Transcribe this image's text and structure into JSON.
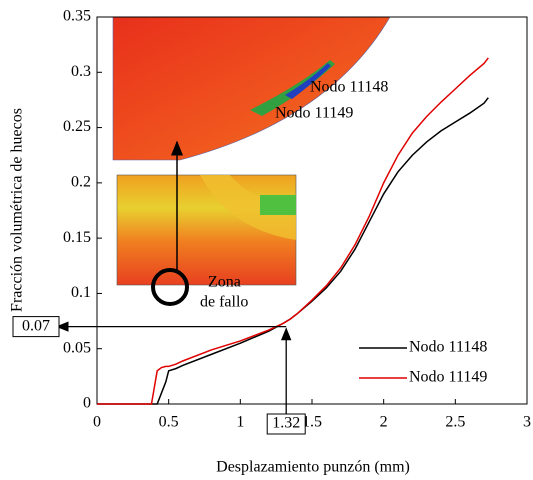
{
  "chart_data": {
    "type": "line",
    "xlabel": "Desplazamiento punzón (mm)",
    "ylabel": "Fracción volumétrica de huecos",
    "x": [
      0,
      0.38,
      0.42,
      0.45,
      0.48,
      0.5,
      0.55,
      0.6,
      0.8,
      1.0,
      1.2,
      1.3,
      1.35,
      1.4,
      1.5,
      1.6,
      1.7,
      1.8,
      1.9,
      2.0,
      2.1,
      2.2,
      2.3,
      2.4,
      2.5,
      2.6,
      2.7,
      2.73
    ],
    "series": [
      {
        "name": "Nodo 11148",
        "color": "#000000",
        "values": [
          0,
          0,
          0,
          0.01,
          0.02,
          0.03,
          0.032,
          0.035,
          0.045,
          0.055,
          0.066,
          0.073,
          0.077,
          0.082,
          0.093,
          0.105,
          0.12,
          0.14,
          0.165,
          0.19,
          0.21,
          0.225,
          0.237,
          0.247,
          0.255,
          0.263,
          0.272,
          0.277
        ]
      },
      {
        "name": "Nodo 11149",
        "color": "#e00000",
        "values": [
          0,
          0,
          0.03,
          0.033,
          0.034,
          0.034,
          0.036,
          0.039,
          0.049,
          0.057,
          0.067,
          0.073,
          0.077,
          0.082,
          0.094,
          0.107,
          0.123,
          0.144,
          0.17,
          0.2,
          0.225,
          0.245,
          0.26,
          0.273,
          0.285,
          0.297,
          0.308,
          0.313
        ]
      }
    ],
    "xlim": [
      0,
      3
    ],
    "ylim": [
      0,
      0.35
    ],
    "xticks": [
      0,
      0.5,
      1,
      1.5,
      2,
      2.5,
      3
    ],
    "yticks": [
      0,
      0.05,
      0.1,
      0.15,
      0.2,
      0.25,
      0.3,
      0.35
    ],
    "legend": "lower right",
    "threshold_x": 1.32,
    "threshold_y": 0.07,
    "inset_labels": [
      "Nodo 11148",
      "Nodo 11149"
    ],
    "zone_label": [
      "Zona",
      "de fallo"
    ]
  }
}
